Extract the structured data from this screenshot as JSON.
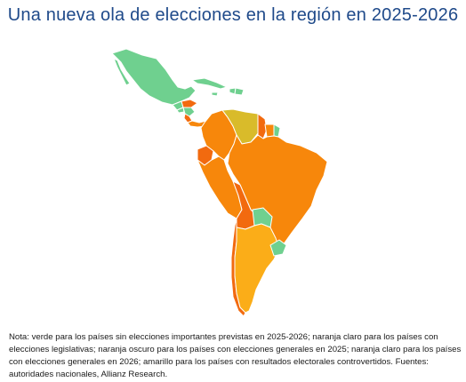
{
  "title": "Una nueva ola de elecciones en la región en 2025-2026",
  "note": "Nota: verde para los países sin elecciones importantes previstas en 2025-2026; naranja claro para los países con elecciones legislativas; naranja oscuro para los países con elecciones generales en 2025; naranja claro para los países con elecciones generales en 2026; amarillo para los países con resultados electorales controvertidos. Fuentes: autoridades nacionales, Allianz Research.",
  "colors": {
    "green": "#6fd08f",
    "dark_orange": "#f26a0f",
    "orange": "#f7870b",
    "light_orange": "#fbad18",
    "yellow": "#d9bb2a"
  }
}
